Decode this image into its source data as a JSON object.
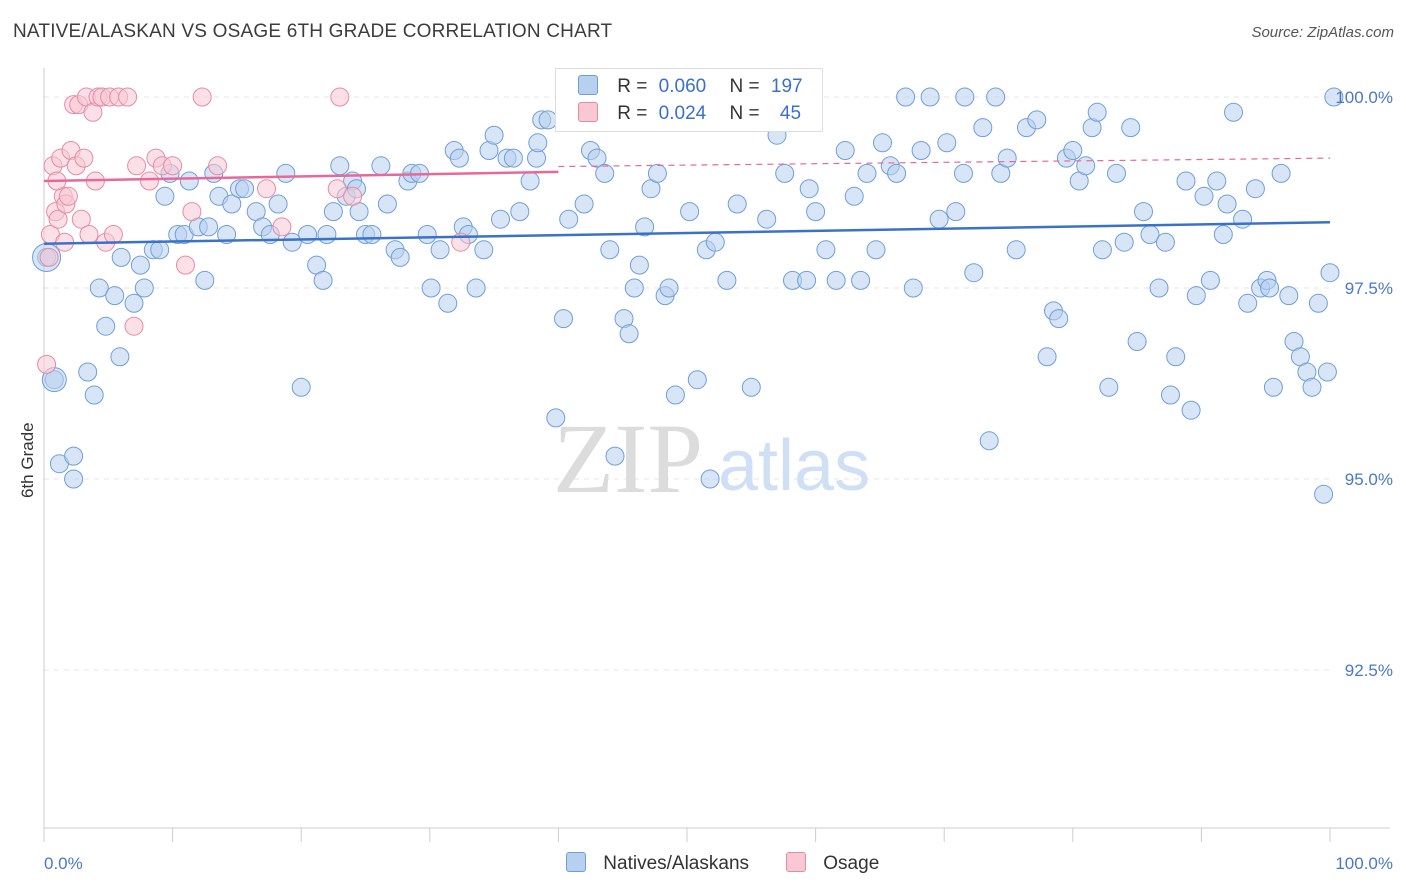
{
  "header": {
    "title": "NATIVE/ALASKAN VS OSAGE 6TH GRADE CORRELATION CHART",
    "source": "Source: ZipAtlas.com"
  },
  "stats": {
    "r_label": "R =",
    "n_label": "N =",
    "rows": [
      {
        "r": "0.060",
        "n": "197"
      },
      {
        "r": "0.024",
        "n": "45"
      }
    ]
  },
  "legend": {
    "items": [
      {
        "label": "Natives/Alaskans",
        "fill": "#b8d0f0",
        "stroke": "#6f9fd8"
      },
      {
        "label": "Osage",
        "fill": "#f8c8d4",
        "stroke": "#e88aa6"
      }
    ]
  },
  "watermark": {
    "zip": "ZIP",
    "atlas": "atlas"
  },
  "chart_data": {
    "type": "scatter",
    "title": "NATIVE/ALASKAN VS OSAGE 6TH GRADE CORRELATION CHART",
    "xlabel": "",
    "ylabel": "6th Grade",
    "xlim": [
      0,
      100
    ],
    "ylim": [
      90.0,
      100.25
    ],
    "x_tick_labels": [
      "0.0%",
      "100.0%"
    ],
    "y_ticks": [
      {
        "value": 100.0,
        "label": "100.0%"
      },
      {
        "value": 97.5,
        "label": "97.5%"
      },
      {
        "value": 95.0,
        "label": "95.0%"
      },
      {
        "value": 92.5,
        "label": "92.5%"
      }
    ],
    "grid": true,
    "legend_position": "bottom-center",
    "colors": {
      "natives": "#6f9fd8",
      "natives_fill": "#b8d0f0",
      "natives_line": "#3a72c8",
      "osage": "#e88aa6",
      "osage_fill": "#f8c8d4",
      "osage_line": "#e8689a"
    },
    "series": [
      {
        "name": "Natives/Alaskans",
        "r": 0.06,
        "n": 197,
        "trend": {
          "x": [
            0,
            100
          ],
          "y": [
            98.08,
            98.36
          ]
        },
        "trend_dashed": {
          "x": [
            40,
            100
          ],
          "y": [
            99.09,
            99.2
          ]
        },
        "points": [
          [
            0.2,
            97.9
          ],
          [
            0.8,
            96.3
          ],
          [
            1.2,
            95.2
          ],
          [
            2.3,
            95.0
          ],
          [
            2.3,
            95.3
          ],
          [
            3.9,
            96.1
          ],
          [
            3.4,
            96.4
          ],
          [
            4.3,
            97.5
          ],
          [
            4.8,
            97.0
          ],
          [
            5.5,
            97.4
          ],
          [
            5.9,
            96.6
          ],
          [
            6.0,
            97.9
          ],
          [
            7.0,
            97.3
          ],
          [
            7.5,
            97.8
          ],
          [
            7.8,
            97.5
          ],
          [
            8.5,
            98.0
          ],
          [
            9.0,
            98.0
          ],
          [
            9.4,
            98.7
          ],
          [
            9.8,
            99.0
          ],
          [
            10.4,
            98.2
          ],
          [
            10.9,
            98.2
          ],
          [
            11.3,
            98.9
          ],
          [
            12.0,
            98.3
          ],
          [
            12.5,
            97.6
          ],
          [
            12.8,
            98.3
          ],
          [
            13.2,
            99.0
          ],
          [
            13.6,
            98.7
          ],
          [
            14.2,
            98.2
          ],
          [
            14.6,
            98.6
          ],
          [
            15.2,
            98.8
          ],
          [
            15.6,
            98.8
          ],
          [
            16.5,
            98.5
          ],
          [
            17.0,
            98.3
          ],
          [
            17.6,
            98.2
          ],
          [
            18.2,
            98.6
          ],
          [
            18.8,
            99.0
          ],
          [
            19.3,
            98.1
          ],
          [
            20.0,
            96.2
          ],
          [
            20.5,
            98.2
          ],
          [
            21.2,
            97.8
          ],
          [
            21.7,
            97.6
          ],
          [
            22.0,
            98.2
          ],
          [
            22.5,
            98.5
          ],
          [
            23.0,
            99.1
          ],
          [
            23.5,
            98.7
          ],
          [
            24.0,
            98.9
          ],
          [
            24.5,
            98.5
          ],
          [
            25.0,
            98.2
          ],
          [
            25.5,
            98.2
          ],
          [
            26.2,
            99.1
          ],
          [
            26.7,
            98.6
          ],
          [
            27.3,
            98.0
          ],
          [
            27.7,
            97.9
          ],
          [
            28.3,
            98.9
          ],
          [
            28.6,
            99.0
          ],
          [
            29.2,
            99.0
          ],
          [
            29.8,
            98.2
          ],
          [
            30.1,
            97.5
          ],
          [
            30.8,
            98.0
          ],
          [
            31.4,
            97.3
          ],
          [
            31.9,
            99.3
          ],
          [
            32.3,
            99.2
          ],
          [
            32.6,
            98.3
          ],
          [
            33.0,
            98.2
          ],
          [
            33.6,
            97.5
          ],
          [
            34.2,
            98.0
          ],
          [
            34.6,
            99.3
          ],
          [
            35.0,
            99.5
          ],
          [
            35.5,
            98.4
          ],
          [
            36.0,
            99.2
          ],
          [
            36.5,
            99.2
          ],
          [
            37.0,
            98.5
          ],
          [
            37.8,
            98.9
          ],
          [
            38.3,
            99.2
          ],
          [
            38.7,
            99.7
          ],
          [
            39.2,
            99.7
          ],
          [
            39.8,
            95.8
          ],
          [
            40.4,
            97.1
          ],
          [
            40.8,
            98.4
          ],
          [
            41.3,
            100.0
          ],
          [
            42.0,
            98.6
          ],
          [
            42.5,
            99.3
          ],
          [
            43.0,
            99.2
          ],
          [
            43.6,
            99.0
          ],
          [
            44.0,
            98.0
          ],
          [
            44.4,
            95.3
          ],
          [
            45.1,
            97.1
          ],
          [
            45.5,
            96.9
          ],
          [
            45.9,
            97.5
          ],
          [
            46.3,
            97.8
          ],
          [
            46.7,
            98.3
          ],
          [
            47.2,
            98.8
          ],
          [
            47.7,
            99.0
          ],
          [
            48.3,
            97.4
          ],
          [
            48.6,
            97.5
          ],
          [
            49.1,
            96.1
          ],
          [
            49.6,
            100.0
          ],
          [
            50.2,
            98.5
          ],
          [
            50.8,
            96.3
          ],
          [
            51.5,
            98.0
          ],
          [
            51.8,
            95.0
          ],
          [
            52.2,
            98.1
          ],
          [
            53.0,
            100.0
          ],
          [
            53.9,
            98.6
          ],
          [
            55.0,
            96.2
          ],
          [
            55.6,
            100.0
          ],
          [
            56.2,
            98.4
          ],
          [
            57.0,
            99.5
          ],
          [
            57.6,
            99.0
          ],
          [
            58.2,
            97.6
          ],
          [
            59.0,
            100.0
          ],
          [
            59.5,
            98.8
          ],
          [
            60.0,
            98.5
          ],
          [
            60.8,
            98.0
          ],
          [
            61.6,
            97.6
          ],
          [
            62.3,
            99.3
          ],
          [
            63.0,
            98.7
          ],
          [
            63.5,
            97.6
          ],
          [
            64.0,
            99.0
          ],
          [
            64.7,
            98.0
          ],
          [
            65.2,
            99.4
          ],
          [
            65.8,
            99.1
          ],
          [
            66.3,
            99.0
          ],
          [
            67.0,
            100.0
          ],
          [
            67.6,
            97.5
          ],
          [
            68.2,
            99.3
          ],
          [
            68.9,
            100.0
          ],
          [
            69.6,
            98.4
          ],
          [
            70.2,
            99.4
          ],
          [
            70.9,
            98.5
          ],
          [
            71.5,
            99.0
          ],
          [
            72.3,
            97.7
          ],
          [
            73.0,
            99.6
          ],
          [
            73.5,
            95.5
          ],
          [
            74.4,
            99.0
          ],
          [
            74.9,
            99.2
          ],
          [
            75.6,
            98.0
          ],
          [
            76.4,
            99.6
          ],
          [
            77.2,
            99.7
          ],
          [
            78.0,
            96.6
          ],
          [
            78.5,
            97.2
          ],
          [
            78.9,
            97.1
          ],
          [
            79.5,
            99.2
          ],
          [
            80.0,
            99.3
          ],
          [
            80.5,
            98.9
          ],
          [
            81.0,
            99.1
          ],
          [
            81.5,
            99.6
          ],
          [
            82.3,
            98.0
          ],
          [
            82.8,
            96.2
          ],
          [
            83.4,
            99.0
          ],
          [
            84.0,
            98.1
          ],
          [
            84.5,
            99.6
          ],
          [
            85.0,
            96.8
          ],
          [
            85.5,
            98.5
          ],
          [
            86.0,
            98.2
          ],
          [
            86.7,
            97.5
          ],
          [
            87.2,
            98.1
          ],
          [
            87.6,
            96.1
          ],
          [
            88.0,
            96.6
          ],
          [
            88.8,
            98.9
          ],
          [
            89.2,
            95.9
          ],
          [
            89.6,
            97.4
          ],
          [
            90.2,
            98.7
          ],
          [
            90.7,
            97.6
          ],
          [
            91.2,
            98.9
          ],
          [
            91.7,
            98.2
          ],
          [
            92.0,
            98.6
          ],
          [
            92.5,
            99.8
          ],
          [
            93.2,
            98.4
          ],
          [
            93.6,
            97.3
          ],
          [
            94.2,
            98.8
          ],
          [
            94.6,
            97.5
          ],
          [
            95.1,
            97.6
          ],
          [
            95.6,
            96.2
          ],
          [
            96.2,
            99.0
          ],
          [
            96.8,
            97.4
          ],
          [
            97.2,
            96.8
          ],
          [
            97.7,
            96.6
          ],
          [
            98.2,
            96.4
          ],
          [
            98.6,
            96.2
          ],
          [
            99.1,
            97.3
          ],
          [
            99.8,
            96.4
          ],
          [
            100.0,
            97.7
          ],
          [
            99.5,
            94.8
          ],
          [
            100.3,
            100.0
          ],
          [
            95.3,
            97.5
          ],
          [
            81.9,
            99.8
          ],
          [
            74.0,
            100.0
          ],
          [
            71.6,
            100.0
          ],
          [
            59.3,
            97.6
          ],
          [
            53.1,
            97.6
          ],
          [
            38.4,
            99.4
          ],
          [
            24.3,
            98.8
          ]
        ]
      },
      {
        "name": "Osage",
        "r": 0.024,
        "n": 45,
        "trend": {
          "x": [
            0,
            40
          ],
          "y": [
            98.9,
            99.02
          ]
        },
        "points": [
          [
            0.2,
            96.5
          ],
          [
            0.4,
            97.9
          ],
          [
            0.5,
            98.2
          ],
          [
            0.7,
            99.1
          ],
          [
            0.9,
            98.5
          ],
          [
            1.1,
            98.4
          ],
          [
            1.3,
            99.2
          ],
          [
            1.5,
            98.7
          ],
          [
            1.7,
            98.6
          ],
          [
            1.9,
            98.7
          ],
          [
            2.1,
            99.3
          ],
          [
            2.3,
            99.9
          ],
          [
            2.5,
            99.1
          ],
          [
            2.7,
            99.9
          ],
          [
            2.9,
            98.4
          ],
          [
            3.1,
            99.2
          ],
          [
            3.3,
            100.0
          ],
          [
            3.5,
            98.2
          ],
          [
            3.8,
            99.8
          ],
          [
            4.0,
            98.9
          ],
          [
            4.2,
            100.0
          ],
          [
            4.5,
            100.0
          ],
          [
            4.8,
            98.1
          ],
          [
            5.1,
            100.0
          ],
          [
            5.4,
            98.2
          ],
          [
            5.8,
            100.0
          ],
          [
            6.5,
            100.0
          ],
          [
            7.0,
            97.0
          ],
          [
            7.2,
            99.1
          ],
          [
            8.2,
            98.9
          ],
          [
            8.7,
            99.2
          ],
          [
            9.2,
            99.1
          ],
          [
            10.0,
            99.1
          ],
          [
            11.0,
            97.8
          ],
          [
            11.5,
            98.5
          ],
          [
            12.3,
            100.0
          ],
          [
            13.5,
            99.1
          ],
          [
            17.3,
            98.8
          ],
          [
            18.5,
            98.3
          ],
          [
            22.8,
            98.8
          ],
          [
            23.0,
            100.0
          ],
          [
            24.0,
            98.7
          ],
          [
            32.4,
            98.1
          ],
          [
            1.0,
            98.9
          ],
          [
            1.6,
            98.1
          ]
        ]
      }
    ]
  }
}
